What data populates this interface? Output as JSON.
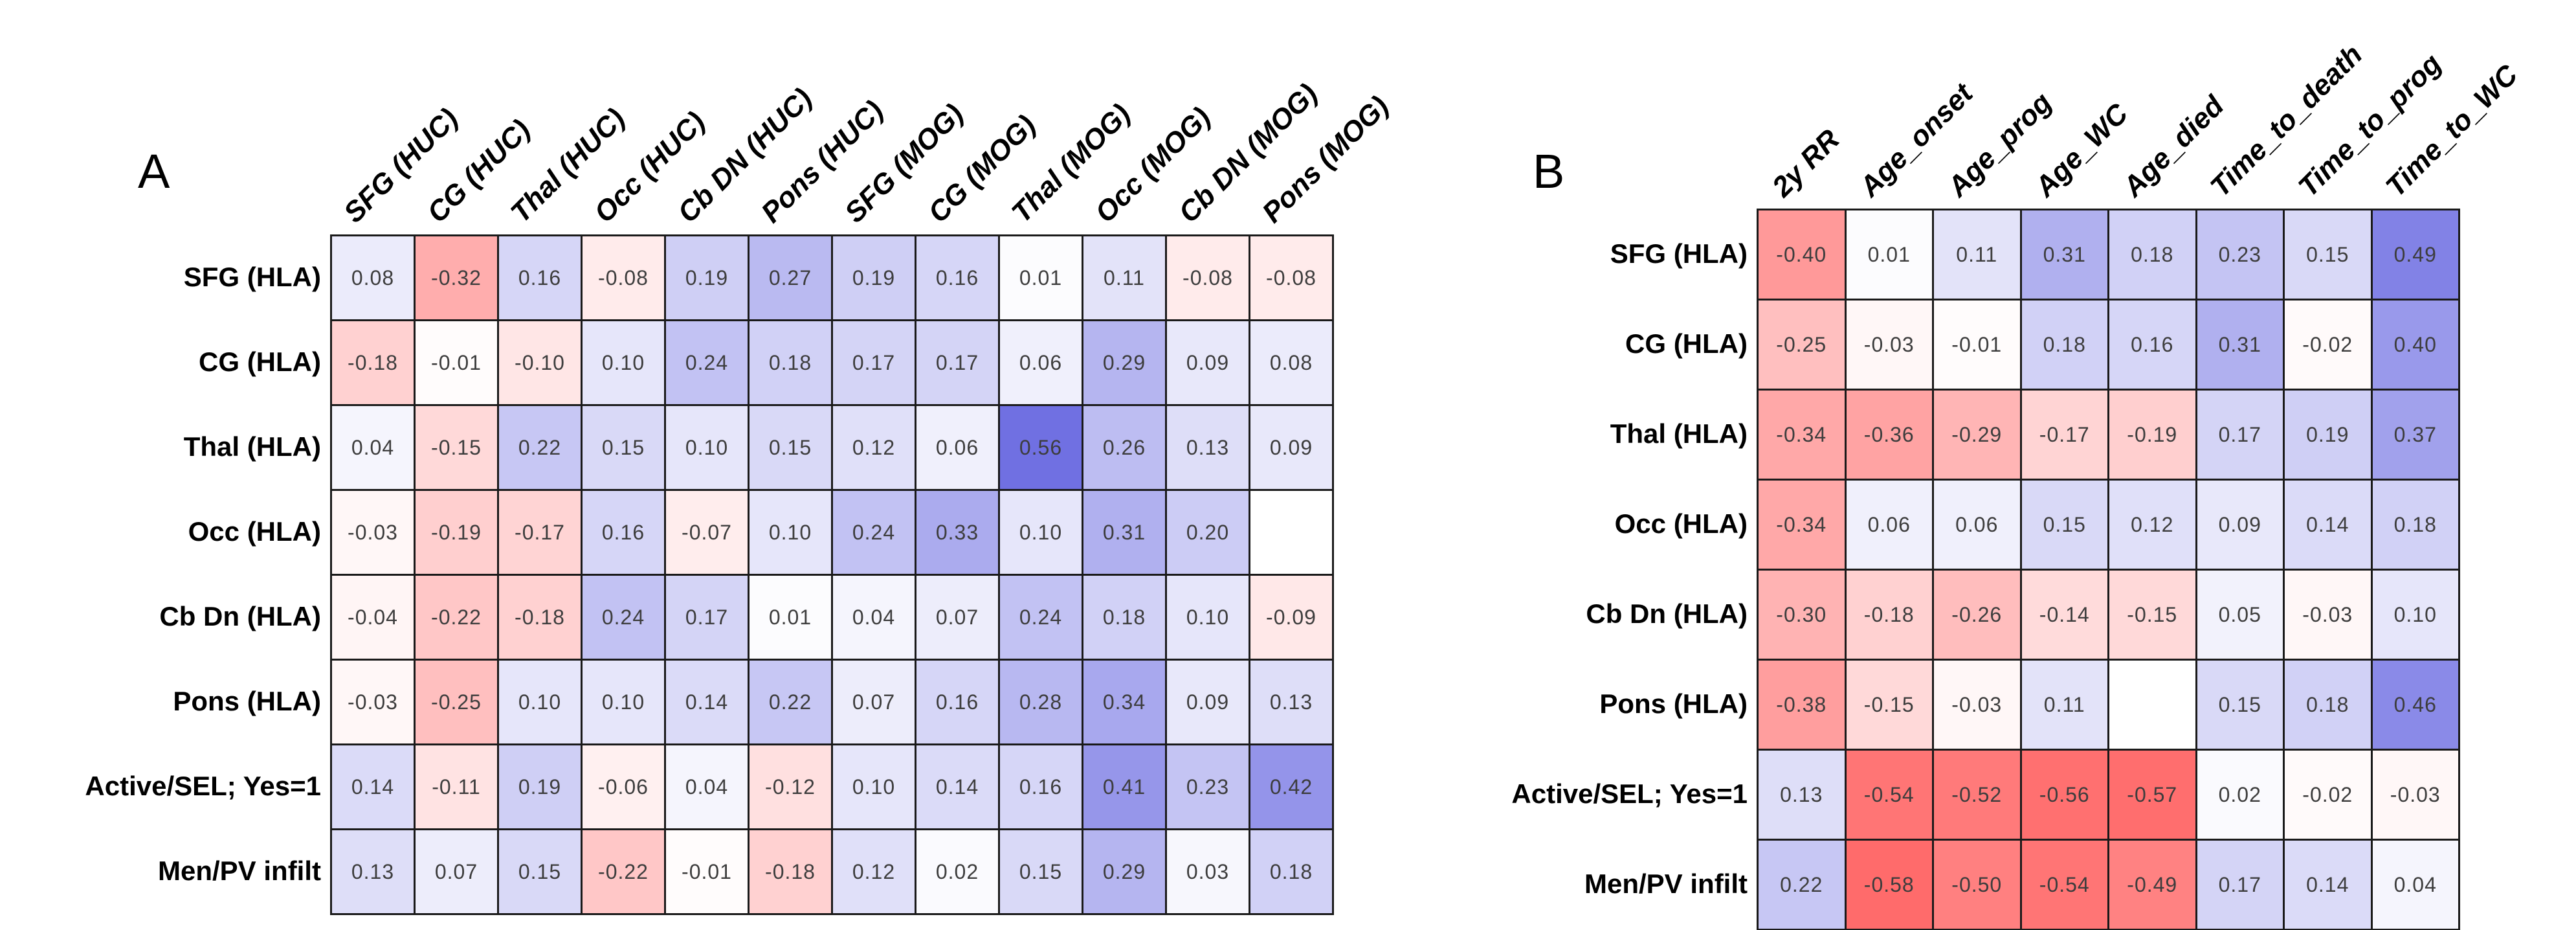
{
  "chart_data": [
    {
      "type": "heatmap",
      "panel_label": "A",
      "columns": [
        "SFG (HUC)",
        "CG (HUC)",
        "Thal (HUC)",
        "Occ (HUC)",
        "Cb DN (HUC)",
        "Pons (HUC)",
        "SFG (MOG)",
        "CG (MOG)",
        "Thal (MOG)",
        "Occ (MOG)",
        "Cb DN (MOG)",
        "Pons (MOG)"
      ],
      "rows": [
        "SFG (HLA)",
        "CG (HLA)",
        "Thal (HLA)",
        "Occ (HLA)",
        "Cb Dn (HLA)",
        "Pons (HLA)",
        "Active/SEL; Yes=1",
        "Men/PV infilt"
      ],
      "values": [
        [
          0.08,
          -0.32,
          0.16,
          -0.08,
          0.19,
          0.27,
          0.19,
          0.16,
          0.01,
          0.11,
          -0.08,
          -0.08
        ],
        [
          -0.18,
          -0.01,
          -0.1,
          0.1,
          0.24,
          0.18,
          0.17,
          0.17,
          0.06,
          0.29,
          0.09,
          0.08
        ],
        [
          0.04,
          -0.15,
          0.22,
          0.15,
          0.1,
          0.15,
          0.12,
          0.06,
          0.56,
          0.26,
          0.13,
          0.09
        ],
        [
          -0.03,
          -0.19,
          -0.17,
          0.16,
          -0.07,
          0.1,
          0.24,
          0.33,
          0.1,
          0.31,
          0.2,
          null
        ],
        [
          -0.04,
          -0.22,
          -0.18,
          0.24,
          0.17,
          0.01,
          0.04,
          0.07,
          0.24,
          0.18,
          0.1,
          -0.09
        ],
        [
          -0.03,
          -0.25,
          0.1,
          0.1,
          0.14,
          0.22,
          0.07,
          0.16,
          0.28,
          0.34,
          0.09,
          0.13
        ],
        [
          0.14,
          -0.11,
          0.19,
          -0.06,
          0.04,
          -0.12,
          0.1,
          0.14,
          0.16,
          0.41,
          0.23,
          0.42
        ],
        [
          0.13,
          0.07,
          0.15,
          -0.22,
          -0.01,
          -0.18,
          0.12,
          0.02,
          0.15,
          0.29,
          0.03,
          0.18
        ]
      ],
      "value_range": [
        -1,
        1
      ],
      "legend": "none",
      "cell_label_format": "2dp",
      "blank_cells_note": "row Occ (HLA) x col Pons (MOG) is empty"
    },
    {
      "type": "heatmap",
      "panel_label": "B",
      "columns": [
        "2y RR",
        "Age_onset",
        "Age_prog",
        "Age_WC",
        "Age_died",
        "Time_to_death",
        "Time_to_prog",
        "Time_to_WC"
      ],
      "rows": [
        "SFG (HLA)",
        "CG (HLA)",
        "Thal (HLA)",
        "Occ (HLA)",
        "Cb Dn (HLA)",
        "Pons (HLA)",
        "Active/SEL; Yes=1",
        "Men/PV infilt"
      ],
      "values": [
        [
          -0.4,
          0.01,
          0.11,
          0.31,
          0.18,
          0.23,
          0.15,
          0.49
        ],
        [
          -0.25,
          -0.03,
          -0.01,
          0.18,
          0.16,
          0.31,
          -0.02,
          0.4
        ],
        [
          -0.34,
          -0.36,
          -0.29,
          -0.17,
          -0.19,
          0.17,
          0.19,
          0.37
        ],
        [
          -0.34,
          0.06,
          0.06,
          0.15,
          0.12,
          0.09,
          0.14,
          0.18
        ],
        [
          -0.3,
          -0.18,
          -0.26,
          -0.14,
          -0.15,
          0.05,
          -0.03,
          0.1
        ],
        [
          -0.38,
          -0.15,
          -0.03,
          0.11,
          null,
          0.15,
          0.18,
          0.46
        ],
        [
          0.13,
          -0.54,
          -0.52,
          -0.56,
          -0.57,
          0.02,
          -0.02,
          -0.03
        ],
        [
          0.22,
          -0.58,
          -0.5,
          -0.54,
          -0.49,
          0.17,
          0.14,
          0.04
        ]
      ],
      "value_range": [
        -1,
        1
      ],
      "legend": "none",
      "cell_label_format": "2dp",
      "blank_cells_note": "row Pons (HLA) x col Age_died is empty"
    }
  ],
  "colors": {
    "positive_max": "#0000cc",
    "negative_max": "#ff0000",
    "zero": "#ffffff",
    "grid_border": "#1a1a1a",
    "value_text": "#3d3d3d",
    "label_text": "#000000",
    "background": "#ffffff"
  }
}
